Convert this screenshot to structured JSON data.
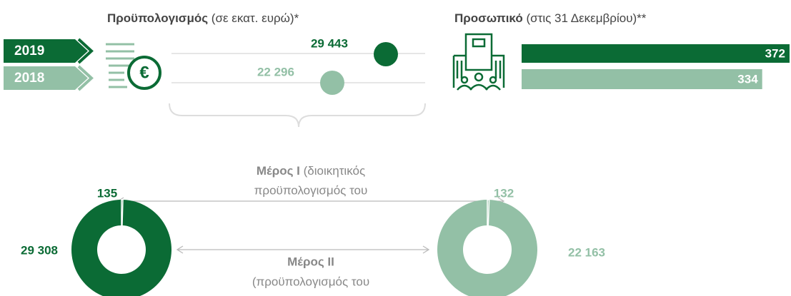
{
  "years": [
    "2019",
    "2018"
  ],
  "budget": {
    "title_bold": "Προϋπολογισμός",
    "title_rest": " (σε εκατ. ευρώ)*",
    "values": [
      29443,
      22296
    ],
    "value_labels": [
      "29 443",
      "22 296"
    ]
  },
  "staff": {
    "title_bold": "Προσωπικό",
    "title_rest": " (στις 31 Δεκεμβρίου)**",
    "values": [
      372,
      334
    ]
  },
  "part1": {
    "title_bold": "Μέρος I",
    "title_rest": " (διοικητικός",
    "line2": "προϋπολογισμός του",
    "values": [
      135,
      132
    ]
  },
  "part2": {
    "title_bold": "Μέρος II",
    "line2": "(προϋπολογισμός του",
    "values": [
      29308,
      22163
    ],
    "value_labels": [
      "29 308",
      "22 163"
    ]
  }
}
